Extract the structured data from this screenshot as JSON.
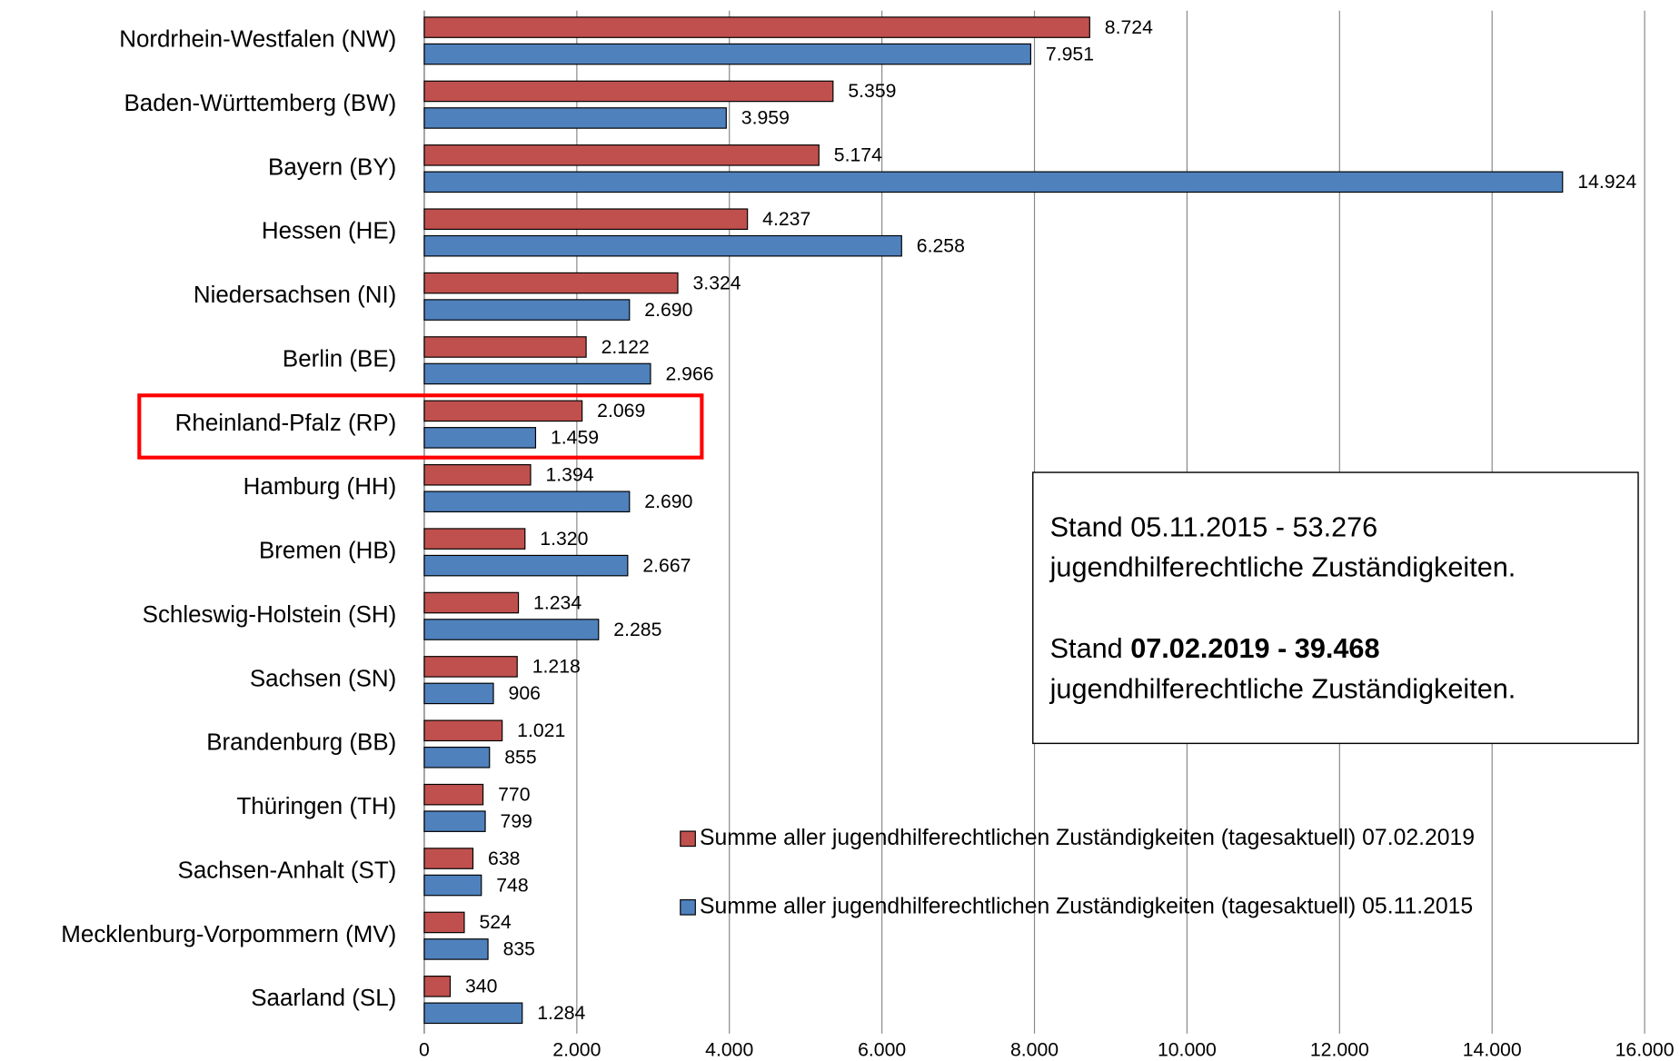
{
  "chart_data": {
    "type": "barh",
    "categories": [
      "Nordrhein-Westfalen (NW)",
      "Baden-Württemberg (BW)",
      "Bayern (BY)",
      "Hessen (HE)",
      "Niedersachsen (NI)",
      "Berlin (BE)",
      "Rheinland-Pfalz (RP)",
      "Hamburg (HH)",
      "Bremen (HB)",
      "Schleswig-Holstein (SH)",
      "Sachsen (SN)",
      "Brandenburg (BB)",
      "Thüringen (TH)",
      "Sachsen-Anhalt (ST)",
      "Mecklenburg-Vorpommern (MV)",
      "Saarland (SL)"
    ],
    "series": [
      {
        "name": "Summe aller jugendhilferechtlichen Zuständigkeiten (tagesaktuell) 07.02.2019",
        "color": "#c0504d",
        "values": [
          8724,
          5359,
          5174,
          4237,
          3324,
          2122,
          2069,
          1394,
          1320,
          1234,
          1218,
          1021,
          770,
          638,
          524,
          340
        ],
        "value_labels": [
          "8.724",
          "5.359",
          "5.174",
          "4.237",
          "3.324",
          "2.122",
          "2.069",
          "1.394",
          "1.320",
          "1.234",
          "1.218",
          "1.021",
          "770",
          "638",
          "524",
          "340"
        ]
      },
      {
        "name": "Summe aller jugendhilferechtlichen Zuständigkeiten (tagesaktuell) 05.11.2015",
        "color": "#4f81bd",
        "values": [
          7951,
          3959,
          14924,
          6258,
          2690,
          2966,
          1459,
          2690,
          2667,
          2285,
          906,
          855,
          799,
          748,
          835,
          1284
        ],
        "value_labels": [
          "7.951",
          "3.959",
          "14.924",
          "6.258",
          "2.690",
          "2.966",
          "1.459",
          "2.690",
          "2.667",
          "2.285",
          "906",
          "855",
          "799",
          "748",
          "835",
          "1.284"
        ]
      }
    ],
    "xlim": [
      0,
      16000
    ],
    "xticks": [
      0,
      {
        "value": 2000,
        "label": "2.000"
      },
      {
        "value": 4000,
        "label": "4.000"
      },
      {
        "value": 6000,
        "label": "6.000"
      },
      {
        "value": 8000,
        "label": "8.000"
      },
      {
        "value": 10000,
        "label": "10.000"
      },
      {
        "value": 12000,
        "label": "12.000"
      },
      {
        "value": 14000,
        "label": "14.000"
      },
      {
        "value": 16000,
        "label": "16.000"
      }
    ],
    "grid": true,
    "highlight_index": 6,
    "annotation": {
      "line1": "Stand 05.11.2015 - 53.276",
      "line2": "jugendhilferechtliche Zuständigkeiten.",
      "line3_prefix": "Stand ",
      "line3_bold": "07.02.2019 - 39.468",
      "line4": "jugendhilferechtliche Zuständigkeiten."
    }
  }
}
